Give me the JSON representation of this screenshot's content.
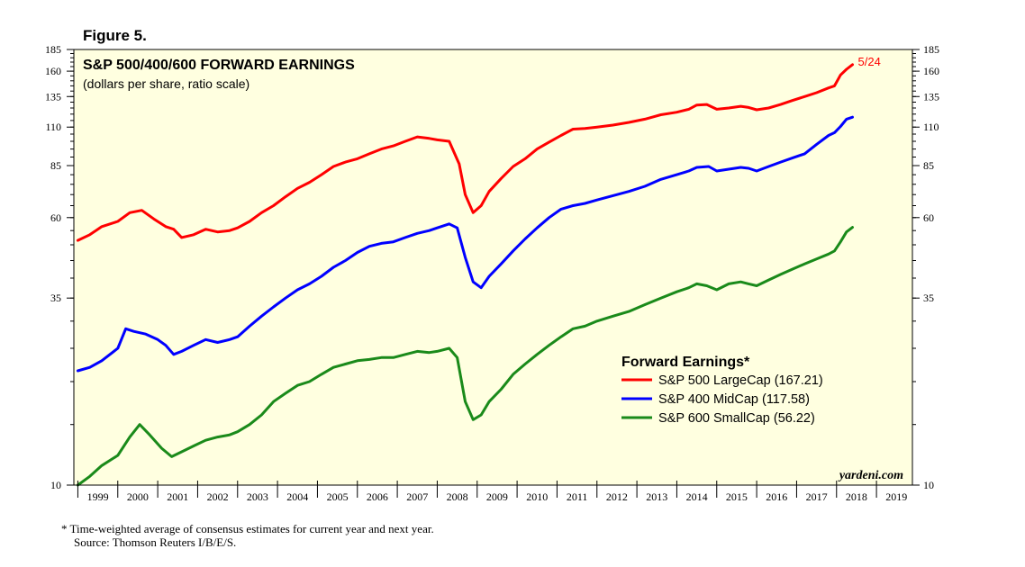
{
  "figure_label": "Figure 5.",
  "footnote": {
    "line1": "*  Time-weighted average of consensus estimates for current year and next year.",
    "line2": "Source: Thomson Reuters I/B/E/S."
  },
  "colors": {
    "plot_background": "#ffffe0",
    "large_cap": "#ff0000",
    "mid_cap": "#0000ff",
    "small_cap": "#1a8a1a"
  },
  "chart_data": {
    "type": "line",
    "title": "S&P 500/400/600 FORWARD EARNINGS",
    "subtitle": "(dollars per share, ratio scale)",
    "y_scale": "log",
    "ylim": [
      10,
      185
    ],
    "y_ticks": [
      10,
      35,
      60,
      85,
      110,
      135,
      160,
      185
    ],
    "y_tick_labels": [
      "10",
      "35",
      "60",
      "85",
      "110",
      "135",
      "160",
      "185"
    ],
    "xlim": [
      1998.9,
      2019.9
    ],
    "x_ticks": [
      1999,
      2000,
      2001,
      2002,
      2003,
      2004,
      2005,
      2006,
      2007,
      2008,
      2009,
      2010,
      2011,
      2012,
      2013,
      2014,
      2015,
      2016,
      2017,
      2018,
      2019
    ],
    "x_tick_labels": [
      "1999",
      "2000",
      "2001",
      "2002",
      "2003",
      "2004",
      "2005",
      "2006",
      "2007",
      "2008",
      "2009",
      "2010",
      "2011",
      "2012",
      "2013",
      "2014",
      "2015",
      "2016",
      "2017",
      "2018",
      "2019"
    ],
    "legend": {
      "title": "Forward Earnings*",
      "placement": "lower-right"
    },
    "end_label": "5/24",
    "source_mark": "yardeni.com",
    "grid": false,
    "series": [
      {
        "name": "S&P 500 LargeCap (167.21)",
        "x": [
          1999.0,
          1999.3,
          1999.6,
          2000.0,
          2000.3,
          2000.6,
          2000.9,
          2001.2,
          2001.4,
          2001.6,
          2001.9,
          2002.2,
          2002.5,
          2002.8,
          2003.0,
          2003.3,
          2003.6,
          2003.9,
          2004.2,
          2004.5,
          2004.8,
          2005.1,
          2005.4,
          2005.7,
          2006.0,
          2006.3,
          2006.6,
          2006.9,
          2007.2,
          2007.5,
          2007.8,
          2008.0,
          2008.3,
          2008.55,
          2008.7,
          2008.9,
          2009.1,
          2009.3,
          2009.6,
          2009.9,
          2010.2,
          2010.5,
          2010.8,
          2011.1,
          2011.4,
          2011.7,
          2012.0,
          2012.4,
          2012.8,
          2013.2,
          2013.6,
          2014.0,
          2014.3,
          2014.5,
          2014.75,
          2015.0,
          2015.3,
          2015.6,
          2015.8,
          2016.0,
          2016.3,
          2016.6,
          2016.9,
          2017.2,
          2017.5,
          2017.8,
          2017.95,
          2018.1,
          2018.25,
          2018.4
        ],
        "values": [
          51.5,
          53.5,
          56.5,
          58.5,
          62.0,
          63.0,
          59.5,
          56.5,
          55.5,
          52.5,
          53.5,
          55.5,
          54.5,
          55.0,
          56.0,
          58.5,
          62.0,
          65.0,
          69.0,
          73.0,
          76.0,
          80.0,
          84.5,
          87.0,
          89.0,
          92.0,
          95.0,
          97.0,
          100.0,
          103.0,
          102.0,
          101.0,
          100.0,
          86.0,
          70.0,
          62.0,
          65.0,
          71.5,
          78.0,
          84.5,
          89.0,
          95.0,
          99.5,
          104.0,
          108.5,
          109.0,
          110.0,
          111.5,
          113.5,
          116.0,
          119.5,
          121.5,
          124.0,
          127.5,
          128.0,
          124.0,
          125.0,
          126.5,
          125.5,
          123.5,
          125.0,
          128.0,
          131.5,
          135.0,
          138.5,
          143.0,
          145.0,
          156.0,
          162.0,
          167.2
        ]
      },
      {
        "name": "S&P 400 MidCap (117.58)",
        "x": [
          1999.0,
          1999.3,
          1999.6,
          2000.0,
          2000.2,
          2000.4,
          2000.7,
          2001.0,
          2001.2,
          2001.4,
          2001.6,
          2001.9,
          2002.2,
          2002.5,
          2002.8,
          2003.0,
          2003.3,
          2003.6,
          2003.9,
          2004.2,
          2004.5,
          2004.8,
          2005.1,
          2005.4,
          2005.7,
          2006.0,
          2006.3,
          2006.6,
          2006.9,
          2007.2,
          2007.5,
          2007.8,
          2008.0,
          2008.3,
          2008.5,
          2008.7,
          2008.9,
          2009.1,
          2009.3,
          2009.6,
          2009.9,
          2010.2,
          2010.5,
          2010.8,
          2011.1,
          2011.4,
          2011.7,
          2012.0,
          2012.4,
          2012.8,
          2013.2,
          2013.6,
          2014.0,
          2014.3,
          2014.5,
          2014.8,
          2015.0,
          2015.3,
          2015.6,
          2015.8,
          2016.0,
          2016.3,
          2016.6,
          2016.9,
          2017.2,
          2017.5,
          2017.8,
          2017.95,
          2018.1,
          2018.25,
          2018.4
        ],
        "values": [
          21.5,
          22.0,
          23.0,
          25.0,
          28.5,
          28.0,
          27.5,
          26.5,
          25.5,
          24.0,
          24.5,
          25.5,
          26.5,
          26.0,
          26.5,
          27.0,
          29.0,
          31.0,
          33.0,
          35.0,
          37.0,
          38.5,
          40.5,
          43.0,
          45.0,
          47.5,
          49.5,
          50.5,
          51.0,
          52.5,
          54.0,
          55.0,
          56.0,
          57.5,
          56.0,
          46.0,
          39.0,
          37.5,
          40.5,
          44.0,
          48.0,
          52.0,
          56.0,
          60.0,
          63.5,
          65.0,
          66.0,
          67.5,
          69.5,
          71.5,
          74.0,
          77.5,
          80.0,
          82.0,
          84.0,
          84.5,
          82.0,
          83.0,
          84.0,
          83.5,
          82.0,
          84.5,
          87.0,
          89.5,
          92.0,
          98.0,
          104.0,
          106.0,
          110.5,
          116.0,
          117.6
        ]
      },
      {
        "name": "S&P 600 SmallCap (56.22)",
        "x": [
          1999.0,
          1999.3,
          1999.6,
          2000.0,
          2000.3,
          2000.55,
          2000.8,
          2001.1,
          2001.35,
          2001.6,
          2001.9,
          2002.2,
          2002.5,
          2002.8,
          2003.0,
          2003.3,
          2003.6,
          2003.9,
          2004.2,
          2004.5,
          2004.8,
          2005.1,
          2005.4,
          2005.7,
          2006.0,
          2006.3,
          2006.6,
          2006.9,
          2007.2,
          2007.5,
          2007.8,
          2008.0,
          2008.3,
          2008.5,
          2008.7,
          2008.9,
          2009.1,
          2009.3,
          2009.6,
          2009.9,
          2010.2,
          2010.5,
          2010.8,
          2011.1,
          2011.4,
          2011.7,
          2012.0,
          2012.4,
          2012.8,
          2013.2,
          2013.6,
          2014.0,
          2014.3,
          2014.5,
          2014.75,
          2015.0,
          2015.3,
          2015.6,
          2015.8,
          2016.0,
          2016.3,
          2016.6,
          2016.9,
          2017.2,
          2017.5,
          2017.8,
          2017.95,
          2018.1,
          2018.25,
          2018.4
        ],
        "values": [
          10.0,
          10.6,
          11.4,
          12.2,
          13.8,
          15.0,
          14.0,
          12.8,
          12.1,
          12.5,
          13.0,
          13.5,
          13.8,
          14.0,
          14.3,
          15.0,
          16.0,
          17.5,
          18.5,
          19.5,
          20.0,
          21.0,
          22.0,
          22.5,
          23.0,
          23.2,
          23.5,
          23.5,
          24.0,
          24.5,
          24.3,
          24.5,
          25.0,
          23.5,
          17.5,
          15.5,
          16.0,
          17.5,
          19.0,
          21.0,
          22.5,
          24.0,
          25.5,
          27.0,
          28.5,
          29.0,
          30.0,
          31.0,
          32.0,
          33.5,
          35.0,
          36.5,
          37.5,
          38.5,
          38.0,
          37.0,
          38.5,
          39.0,
          38.5,
          38.0,
          39.5,
          41.0,
          42.5,
          44.0,
          45.5,
          47.0,
          48.0,
          51.0,
          54.5,
          56.2
        ]
      }
    ]
  }
}
